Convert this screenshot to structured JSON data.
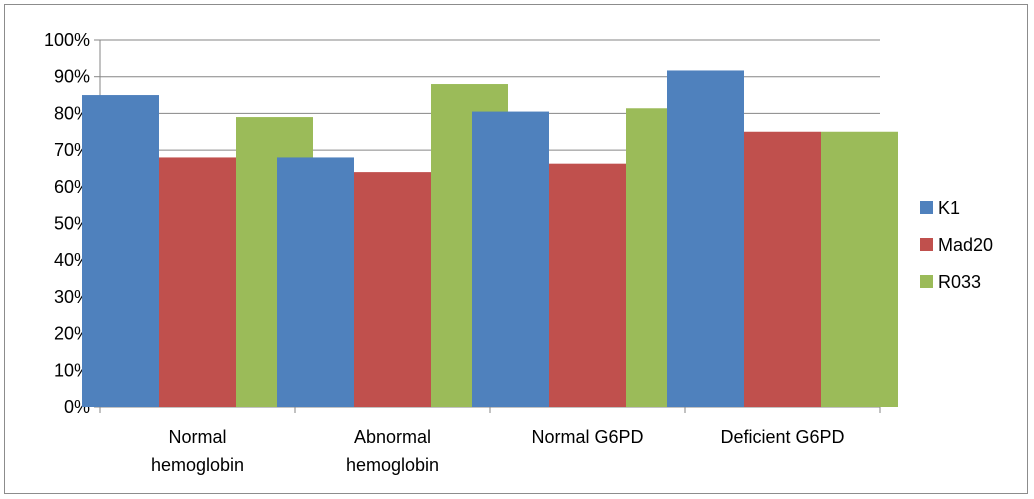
{
  "chart_data": {
    "type": "bar",
    "categories": [
      [
        "Normal",
        "hemoglobin"
      ],
      [
        "Abnormal",
        "hemoglobin"
      ],
      [
        "Normal G6PD"
      ],
      [
        "Deficient G6PD"
      ]
    ],
    "series": [
      {
        "name": "K1",
        "color": "#4f81bd",
        "values": [
          85,
          68,
          80.5,
          91.7
        ]
      },
      {
        "name": "Mad20",
        "color": "#c0504d",
        "values": [
          68,
          64,
          66.3,
          75
        ]
      },
      {
        "name": "R033",
        "color": "#9bbb59",
        "values": [
          79,
          88,
          81.4,
          75
        ]
      }
    ],
    "ylim": [
      0,
      100
    ],
    "y_ticks": [
      0,
      10,
      20,
      30,
      40,
      50,
      60,
      70,
      80,
      90,
      100
    ],
    "y_tick_format": "percent",
    "grid": true,
    "legend_position": "right"
  }
}
